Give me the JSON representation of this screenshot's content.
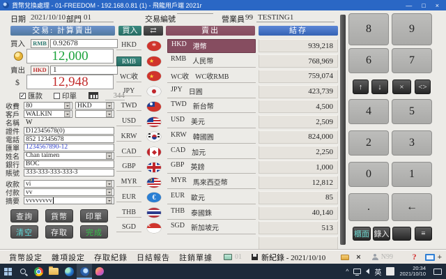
{
  "window": {
    "title": "貨幣兌換處理 - 01-FREEDOM - 192.168.0.81 (1) - 飛龍用戶端 2021r",
    "minimize": "—",
    "maximize": "□",
    "close": "×"
  },
  "info_bar": {
    "date_label": "日期",
    "date": "2021/10/10",
    "dept_label": "部門",
    "dept": "01",
    "txn_label": "交易編號",
    "txn": "",
    "clerk_label": "營業員",
    "clerk_no": "99",
    "clerk_name": "TESTING1"
  },
  "trade_panel": {
    "header": "交易: 計算賣出",
    "buy_label": "買入",
    "buy_currency": "RMB",
    "buy_rate": "0.92678",
    "buy_amount": "12,000",
    "sell_label": "賣出",
    "sell_currency": "HKD",
    "sell_rate": "1",
    "sell_prefix": "$",
    "sell_amount": "12,948",
    "remit_label": "匯款",
    "remit_checked": true,
    "print_label": "印單",
    "print_checked": false,
    "counter": "344",
    "fields": [
      {
        "label": "收費",
        "value": "80",
        "type": "select-num",
        "extra": "HKD"
      },
      {
        "label": "客戶",
        "value": "WALKIN",
        "type": "select",
        "extra": ""
      },
      {
        "label": "名稱",
        "value": "W",
        "type": "text"
      },
      {
        "label": "證件",
        "value": "D12345678(0)",
        "type": "input"
      },
      {
        "label": "電話",
        "value": "852 12345678",
        "type": "input"
      },
      {
        "label": "匯單",
        "value": "1234567890-12",
        "type": "input-blue"
      },
      {
        "label": "姓名",
        "value": "Chan taimen",
        "type": "select-wide"
      },
      {
        "label": "銀行",
        "value": "BOC",
        "type": "input"
      },
      {
        "label": "賬號",
        "value": "333-333-333-333-3",
        "type": "input"
      },
      {
        "label": "收款",
        "value": "vi",
        "type": "select-wide",
        "gap_before": true
      },
      {
        "label": "付款",
        "value": "vv",
        "type": "select-wide"
      },
      {
        "label": "摘要",
        "value": "vvvvvvvv",
        "type": "select-wide",
        "caret": true
      }
    ],
    "buttons": [
      {
        "label": "查詢",
        "style": "white"
      },
      {
        "label": "貨幣",
        "style": "white"
      },
      {
        "label": "印單",
        "style": "white"
      },
      {
        "label": "清空",
        "style": "cyan"
      },
      {
        "label": "存取",
        "style": "white"
      },
      {
        "label": "完成",
        "style": "green"
      }
    ]
  },
  "currency_table": {
    "buy_header": "買入",
    "swap_label": "⇄",
    "sell_header": "賣出",
    "balance_header": "結存",
    "selected_buy": "RMB",
    "selected_sell": "HKD",
    "rows": [
      {
        "code": "HKD",
        "name": "港幣",
        "balance": "939,218",
        "flag": "hk"
      },
      {
        "code": "RMB",
        "name": "人民幣",
        "balance": "768,969",
        "flag": "cn"
      },
      {
        "code": "WC收",
        "name": "WC收RMB",
        "balance": "759,074",
        "flag": "cn"
      },
      {
        "code": "JPY",
        "name": "日圓",
        "balance": "423,739",
        "flag": "jp"
      },
      {
        "code": "TWD",
        "name": "新台幣",
        "balance": "4,500",
        "flag": "tw"
      },
      {
        "code": "USD",
        "name": "美元",
        "balance": "2,509",
        "flag": "us"
      },
      {
        "code": "KRW",
        "name": "韓國圓",
        "balance": "824,000",
        "flag": "kr"
      },
      {
        "code": "CAD",
        "name": "加元",
        "balance": "2,250",
        "flag": "ca"
      },
      {
        "code": "GBP",
        "name": "英鎊",
        "balance": "1,000",
        "flag": "gb"
      },
      {
        "code": "MYR",
        "name": "馬來西亞幣",
        "balance": "12,812",
        "flag": "my"
      },
      {
        "code": "EUR",
        "name": "歐元",
        "balance": "85",
        "flag": "eu"
      },
      {
        "code": "THB",
        "name": "泰國銖",
        "balance": "40,140",
        "flag": "th"
      },
      {
        "code": "SGD",
        "name": "新加坡元",
        "balance": "513",
        "flag": "sg"
      }
    ]
  },
  "keypad": {
    "keys": [
      {
        "id": "d8",
        "label": "8",
        "kind": "digit"
      },
      {
        "id": "d9",
        "label": "9",
        "kind": "digit"
      },
      {
        "id": "d6",
        "label": "6",
        "kind": "digit"
      },
      {
        "id": "d7",
        "label": "7",
        "kind": "digit"
      },
      {
        "id": "up",
        "label": "↑",
        "kind": "dark"
      },
      {
        "id": "down",
        "label": "↓",
        "kind": "dark"
      },
      {
        "id": "mul",
        "label": "×",
        "kind": "dark"
      },
      {
        "id": "angle",
        "label": "<>",
        "kind": "dark"
      },
      {
        "id": "d4",
        "label": "4",
        "kind": "digit"
      },
      {
        "id": "d5",
        "label": "5",
        "kind": "digit"
      },
      {
        "id": "d2",
        "label": "2",
        "kind": "digit"
      },
      {
        "id": "d3",
        "label": "3",
        "kind": "digit"
      },
      {
        "id": "d0",
        "label": "0",
        "kind": "digit"
      },
      {
        "id": "d1",
        "label": "1",
        "kind": "digit"
      },
      {
        "id": "dot",
        "label": ".",
        "kind": "digit"
      },
      {
        "id": "back",
        "label": "←",
        "kind": "digit"
      },
      {
        "id": "front",
        "label": "櫃面",
        "kind": "dark teal"
      },
      {
        "id": "entry",
        "label": "錄入",
        "kind": "dark"
      },
      {
        "id": "blank",
        "label": "",
        "kind": "dark"
      },
      {
        "id": "menu",
        "label": "≡",
        "kind": "dark"
      }
    ]
  },
  "menu_bar": {
    "items": [
      "貨幣設定",
      "雜項設定",
      "存取紀錄",
      "日結報告",
      "註銷單據"
    ],
    "station": "01",
    "record": "新紀錄 - 2021/10/10",
    "close_label": "×",
    "user": "N99",
    "help": "?",
    "plus": "+"
  },
  "taskbar": {
    "chevron": "^",
    "ime": "英",
    "time": "20:34",
    "date": "2021/10/10"
  },
  "colors": {
    "titlebar_blue": "#2a67c5",
    "steel_blue": "#5c82bd",
    "balance_blue": "#3f6fbe",
    "teal": "#2e7c74",
    "maroon": "#864d60",
    "amount_green": "#1aa23a",
    "amount_red": "#c22b2b",
    "link_blue": "#3344cc",
    "taskbar_navy": "#1d2a3a"
  }
}
